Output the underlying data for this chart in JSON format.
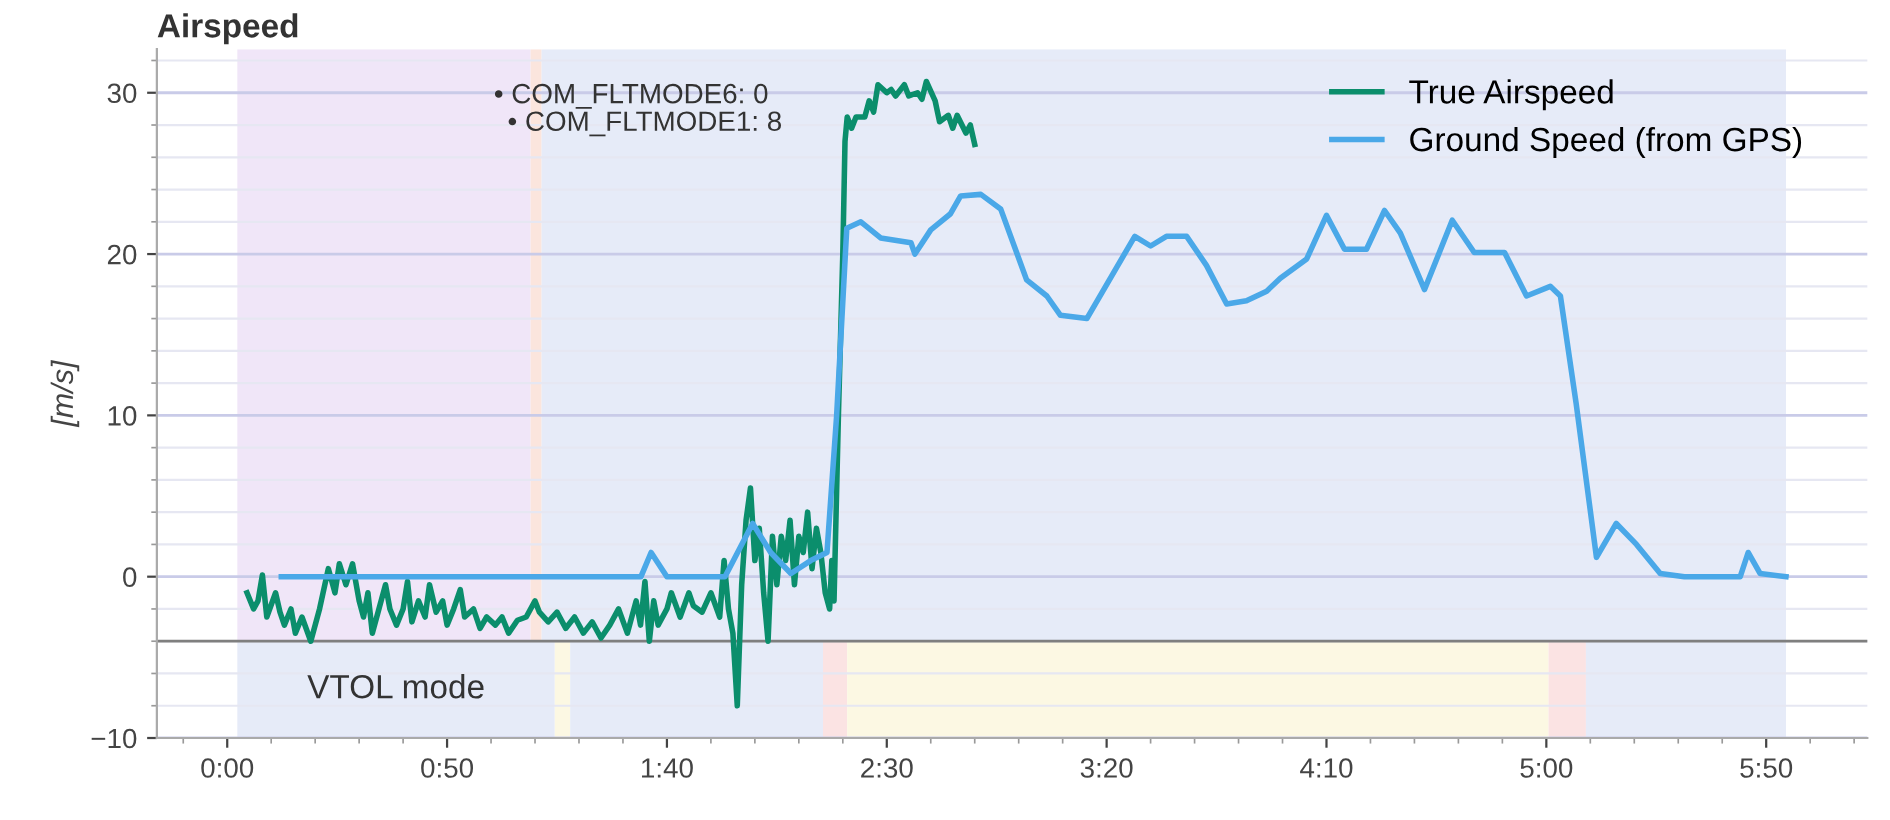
{
  "chart_data": {
    "type": "line",
    "title": "Airspeed",
    "ylabel": "[m/s]",
    "xlim": [
      -16,
      373
    ],
    "ylim": [
      -10,
      32.7
    ],
    "xticks": [
      {
        "value": 0,
        "label": "0:00"
      },
      {
        "value": 50,
        "label": "0:50"
      },
      {
        "value": 100,
        "label": "1:40"
      },
      {
        "value": 150,
        "label": "2:30"
      },
      {
        "value": 200,
        "label": "3:20"
      },
      {
        "value": 250,
        "label": "4:10"
      },
      {
        "value": 300,
        "label": "5:00"
      },
      {
        "value": 350,
        "label": "5:50"
      }
    ],
    "yticks": [
      {
        "value": -10,
        "label": "−10"
      },
      0,
      10,
      20,
      30
    ],
    "grid": "y",
    "legend": "top right",
    "bands": [
      {
        "axis": "x",
        "from": 2.3,
        "to": 69,
        "color": "#f0e6f8"
      },
      {
        "axis": "x",
        "from": 69,
        "to": 71.5,
        "color": "#fbe5dd"
      },
      {
        "axis": "x",
        "from": 71.5,
        "to": 354.5,
        "color": "#e6ebf8"
      },
      {
        "axis": "x",
        "from": 2.3,
        "to": 74.5,
        "color": "#e6ebf8",
        "label": "VTOL mode"
      },
      {
        "axis": "x",
        "from": 74.5,
        "to": 78,
        "color": "#fcf8e3"
      },
      {
        "axis": "x",
        "from": 78,
        "to": 135.5,
        "color": "#e6ebf8"
      },
      {
        "axis": "x",
        "from": 135.5,
        "to": 141,
        "color": "#fbe3e3"
      },
      {
        "axis": "x",
        "from": 141,
        "to": 300.5,
        "color": "#fcf8e3"
      },
      {
        "axis": "x",
        "from": 300.5,
        "to": 309,
        "color": "#fbe3e3"
      },
      {
        "axis": "x",
        "from": 309,
        "to": 354.5,
        "color": "#e6ebf8"
      }
    ],
    "ref_lines": [
      {
        "axis": "y",
        "value": -4,
        "color": "#7f7f7f"
      }
    ],
    "annotations": [
      "• COM_FLTMODE6: 0",
      "• COM_FLTMODE1: 8"
    ],
    "series": [
      {
        "name": "True Airspeed",
        "color": "#0b8e6c",
        "x": [
          4.5,
          6,
          7,
          8,
          9,
          11,
          12,
          13,
          14.5,
          15.5,
          17,
          19,
          21,
          23,
          24.5,
          25.5,
          27,
          28.5,
          30,
          31,
          32,
          33,
          34.5,
          36,
          37,
          38.5,
          40,
          41,
          42,
          43.5,
          45,
          46,
          47.5,
          49,
          50,
          51.5,
          53,
          54,
          56,
          57.5,
          59,
          61,
          62.5,
          64,
          66,
          68,
          70,
          71,
          73,
          75,
          77,
          79,
          81,
          83,
          85,
          87,
          89,
          91,
          93,
          94,
          95,
          96,
          97,
          98,
          100,
          101,
          103,
          105,
          106,
          108,
          110,
          112,
          113,
          114,
          115,
          116,
          117,
          118,
          119,
          120,
          121,
          122,
          123,
          124,
          125,
          126,
          127,
          128,
          129,
          130,
          131,
          132,
          133,
          134,
          135,
          136,
          137,
          137.5,
          138,
          139,
          140,
          140.5,
          141,
          142,
          143,
          145,
          146,
          147,
          148,
          150,
          151,
          152,
          154,
          155,
          157,
          158,
          159,
          161,
          162,
          164,
          165,
          166,
          168,
          169,
          170
        ],
        "values": [
          -1,
          -2,
          -1.5,
          0.1,
          -2.5,
          -1,
          -2.2,
          -3,
          -2,
          -3.5,
          -2.5,
          -4,
          -2,
          0.5,
          -1,
          0.8,
          -0.5,
          0.8,
          -1.5,
          -2.5,
          -1,
          -3.5,
          -2,
          -0.5,
          -2,
          -3,
          -2,
          -0.3,
          -2.8,
          -1.5,
          -2.5,
          -0.5,
          -2.2,
          -1.5,
          -3,
          -2,
          -0.8,
          -2.5,
          -2,
          -3.2,
          -2.5,
          -3,
          -2.5,
          -3.5,
          -2.7,
          -2.5,
          -1.5,
          -2.2,
          -2.8,
          -2.2,
          -3.2,
          -2.5,
          -3.5,
          -2.8,
          -3.8,
          -3,
          -2,
          -3.5,
          -1.5,
          -3,
          -0.3,
          -4,
          -1.5,
          -3,
          -2,
          -1,
          -2.5,
          -1,
          -1.8,
          -2.2,
          -1,
          -2.5,
          1,
          -2,
          -3.5,
          -8,
          -0.5,
          3.5,
          5.5,
          1,
          3,
          -1,
          -4,
          2.5,
          -0.5,
          2.5,
          1,
          3.5,
          -0.5,
          2.5,
          1.5,
          4,
          0.5,
          3,
          1.5,
          -1,
          -2,
          1,
          -1.5,
          10,
          20,
          27,
          28.5,
          27.8,
          28.5,
          28.5,
          29.5,
          28.8,
          30.5,
          30,
          30.2,
          29.8,
          30.5,
          29.8,
          30,
          29.6,
          30.7,
          29.5,
          28.2,
          28.6,
          27.8,
          28.6,
          27.5,
          28,
          26.8
        ]
      },
      {
        "name": "Ground Speed (from GPS)",
        "color": "#4aa8e8",
        "x": [
          12.3,
          94.1,
          96.4,
          100,
          113.2,
          119.5,
          123.6,
          128.2,
          132.7,
          136.4,
          138.6,
          140.9,
          144.1,
          148.6,
          155.5,
          156.4,
          160,
          164.5,
          166.8,
          171.4,
          175.9,
          181.8,
          186.4,
          189.5,
          195.5,
          206.4,
          210,
          213.6,
          218.2,
          222.7,
          227.3,
          231.8,
          236.4,
          239.5,
          245.5,
          250,
          254.1,
          259.1,
          263.2,
          266.8,
          272.3,
          278.6,
          283.6,
          290.5,
          295.5,
          300.9,
          303.2,
          306.8,
          311.4,
          315.9,
          320.5,
          325.9,
          331.4,
          344.1,
          345.9,
          348.6,
          354.5
        ],
        "values": [
          0,
          0,
          1.5,
          0,
          0,
          3.3,
          1.5,
          0.2,
          1,
          1.5,
          10,
          21.6,
          22,
          21,
          20.7,
          20,
          21.5,
          22.5,
          23.6,
          23.7,
          22.8,
          18.4,
          17.4,
          16.2,
          16,
          21.1,
          20.5,
          21.1,
          21.1,
          19.3,
          16.9,
          17.1,
          17.7,
          18.5,
          19.7,
          22.4,
          20.3,
          20.3,
          22.7,
          21.3,
          17.8,
          22.1,
          20.1,
          20.1,
          17.4,
          18,
          17.4,
          10.7,
          1.2,
          3.3,
          2,
          0.2,
          0,
          0,
          1.5,
          0.2,
          0
        ]
      }
    ]
  }
}
